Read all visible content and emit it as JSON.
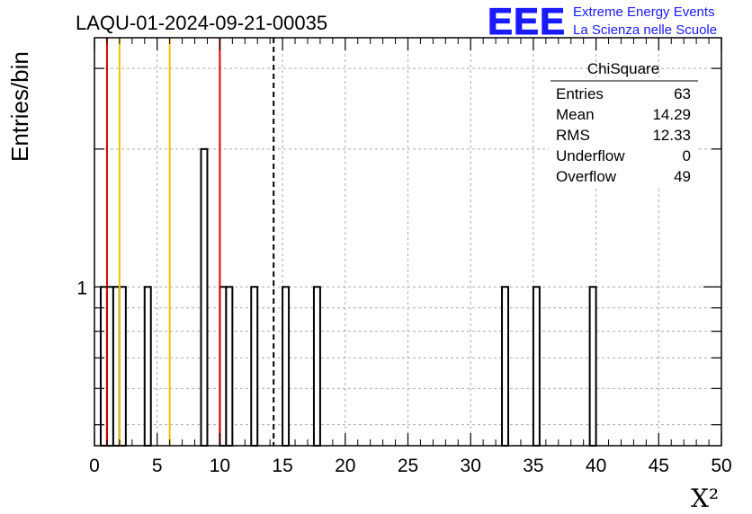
{
  "header": {
    "run_title": "LAQU-01-2024-09-21-00035",
    "logo_text": "EEE",
    "logo_line1": "Extreme Energy Events",
    "logo_line2": "La Scienza nelle Scuole",
    "logo_color": "#1a1aff"
  },
  "stats_box": {
    "title": "ChiSquare",
    "rows": [
      {
        "label": "Entries",
        "value": "63"
      },
      {
        "label": "Mean",
        "value": "14.29"
      },
      {
        "label": "RMS",
        "value": "12.33"
      },
      {
        "label": "Underflow",
        "value": "0"
      },
      {
        "label": "Overflow",
        "value": "49"
      }
    ]
  },
  "chart_data": {
    "type": "bar",
    "title": "LAQU-01-2024-09-21-00035",
    "xlabel": "X²",
    "ylabel": "Entries/bin",
    "xlim": [
      0,
      50
    ],
    "y_scale": "log",
    "ylim": [
      0.45,
      3.5
    ],
    "grid": true,
    "bin_width": 0.5,
    "x_ticks": [
      "0",
      "5",
      "10",
      "15",
      "20",
      "25",
      "30",
      "35",
      "40",
      "45",
      "50"
    ],
    "y_tick_labels": [
      "1"
    ],
    "bins": [
      {
        "x": 0.5,
        "value": 1
      },
      {
        "x": 1.0,
        "value": 1
      },
      {
        "x": 1.5,
        "value": 1
      },
      {
        "x": 2.0,
        "value": 1
      },
      {
        "x": 4.0,
        "value": 1
      },
      {
        "x": 8.5,
        "value": 2
      },
      {
        "x": 10.0,
        "value": 1
      },
      {
        "x": 10.5,
        "value": 1
      },
      {
        "x": 12.5,
        "value": 1
      },
      {
        "x": 15.0,
        "value": 1
      },
      {
        "x": 17.5,
        "value": 1
      },
      {
        "x": 32.5,
        "value": 1
      },
      {
        "x": 35.0,
        "value": 1
      },
      {
        "x": 39.5,
        "value": 1
      }
    ],
    "reference_lines": [
      {
        "x": 1.0,
        "color": "#dd0000",
        "style": "solid"
      },
      {
        "x": 2.0,
        "color": "#f0c000",
        "style": "solid"
      },
      {
        "x": 6.0,
        "color": "#f0c000",
        "style": "solid"
      },
      {
        "x": 10.0,
        "color": "#dd0000",
        "style": "solid"
      },
      {
        "x": 14.29,
        "color": "#000000",
        "style": "dashed"
      }
    ]
  }
}
